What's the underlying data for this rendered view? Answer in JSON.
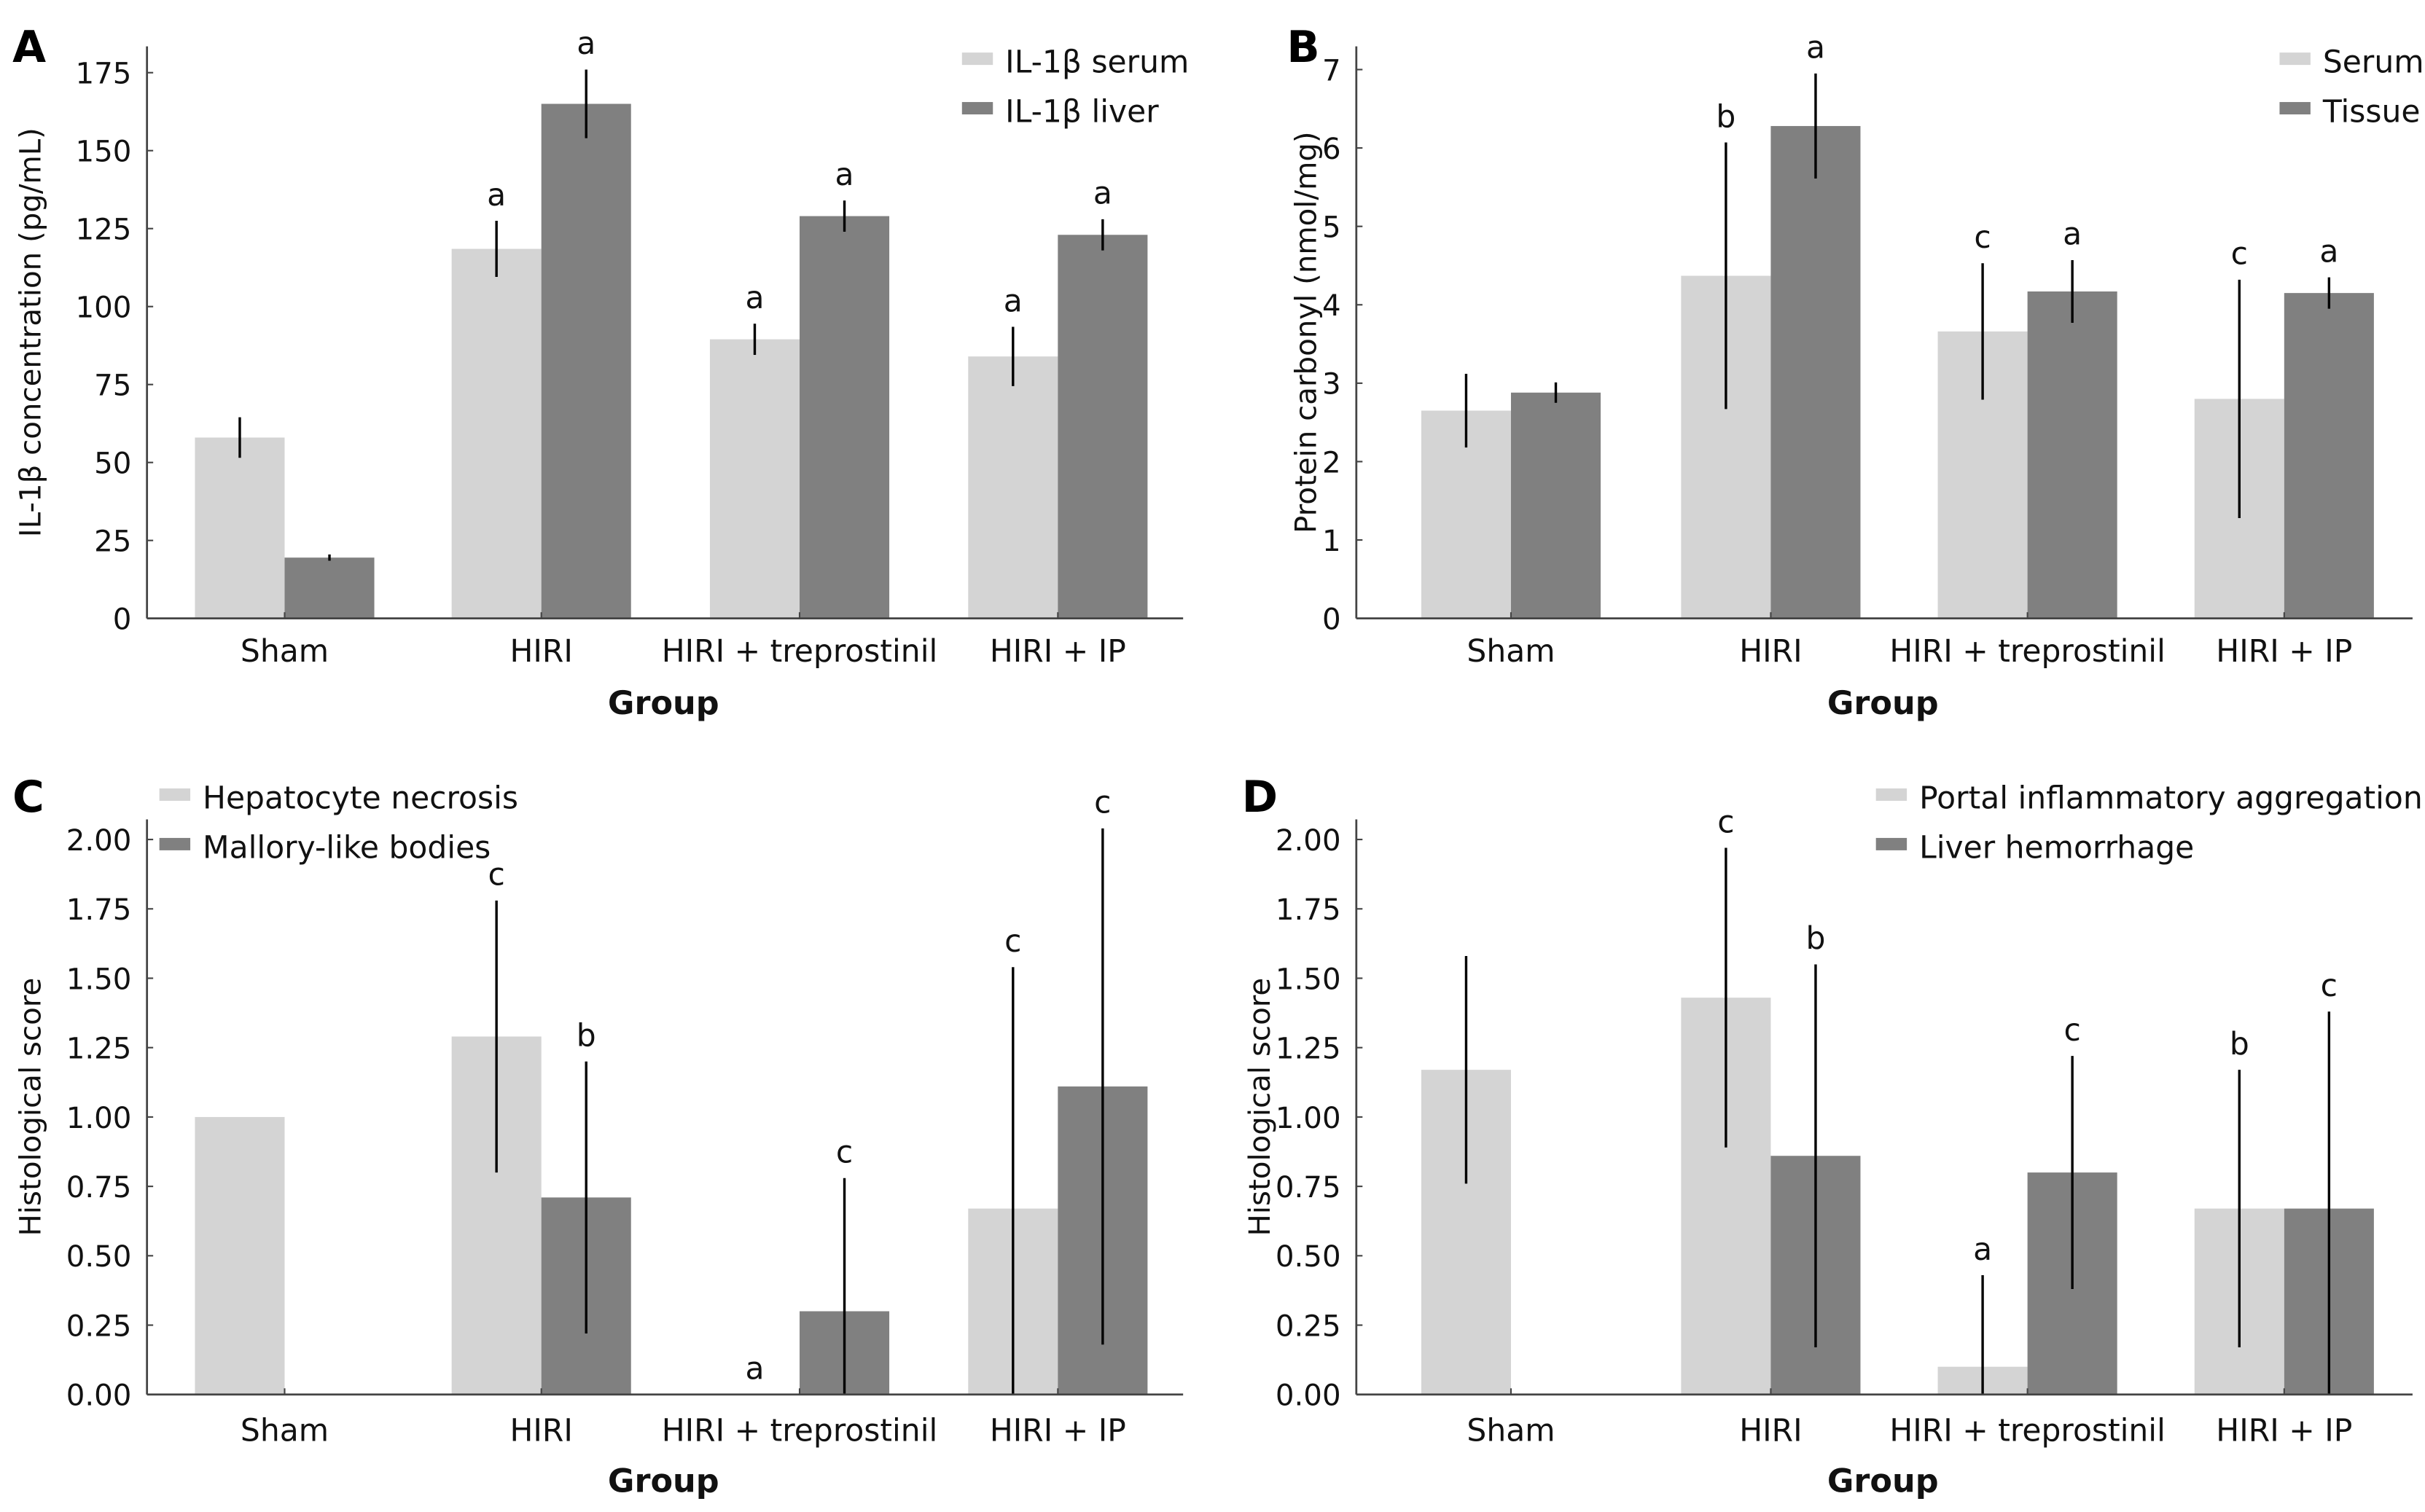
{
  "colors": {
    "series1": "#d4d4d4",
    "series2": "#808080",
    "axis": "#444444",
    "error": "#000000"
  },
  "chart_data": [
    {
      "panel": "A",
      "type": "bar",
      "categories": [
        "Sham",
        "HIRI",
        "HIRI + treprostinil",
        "HIRI + IP"
      ],
      "xlabel": "Group",
      "ylabel": "IL-1β concentration (pg/mL)",
      "ylim": [
        0,
        185
      ],
      "yticks": [
        0,
        25,
        50,
        75,
        100,
        125,
        150,
        175
      ],
      "ytick_decimals": 0,
      "legend_position": "top-right",
      "series": [
        {
          "name": "IL-1β serum",
          "values": [
            58,
            118.5,
            89.5,
            84
          ],
          "errors": [
            6.5,
            9,
            5,
            9.5
          ],
          "labels": [
            "",
            "a",
            "a",
            "a"
          ]
        },
        {
          "name": "IL-1β liver",
          "values": [
            19.5,
            165,
            129,
            123
          ],
          "errors": [
            1,
            11,
            5,
            5
          ],
          "labels": [
            "",
            "a",
            "a",
            "a"
          ]
        }
      ]
    },
    {
      "panel": "B",
      "type": "bar",
      "categories": [
        "Sham",
        "HIRI",
        "HIRI + treprostinil",
        "HIRI + IP"
      ],
      "xlabel": "Group",
      "ylabel": "Protein carbonyl (nmol/mg)",
      "ylim": [
        0,
        7.3
      ],
      "yticks": [
        0,
        1,
        2,
        3,
        4,
        5,
        6,
        7
      ],
      "ytick_decimals": 0,
      "legend_position": "top-right",
      "series": [
        {
          "name": "Serum",
          "values": [
            2.65,
            4.37,
            3.66,
            2.8
          ],
          "errors": [
            0.47,
            1.7,
            0.87,
            1.52
          ],
          "labels": [
            "",
            "b",
            "c",
            "c"
          ]
        },
        {
          "name": "Tissue",
          "values": [
            2.88,
            6.28,
            4.17,
            4.15
          ],
          "errors": [
            0.13,
            0.67,
            0.4,
            0.2
          ],
          "labels": [
            "",
            "a",
            "a",
            "a"
          ]
        }
      ]
    },
    {
      "panel": "C",
      "type": "bar",
      "categories": [
        "Sham",
        "HIRI",
        "HIRI + treprostinil",
        "HIRI + IP"
      ],
      "xlabel": "Group",
      "ylabel": "Histological score",
      "ylim": [
        0,
        2.1
      ],
      "yticks": [
        0,
        0.25,
        0.5,
        0.75,
        1,
        1.25,
        1.5,
        1.75,
        2
      ],
      "ytick_decimals": 2,
      "legend_position": "top-left",
      "series": [
        {
          "name": "Hepatocyte necrosis",
          "values": [
            1.0,
            1.29,
            0,
            0.67
          ],
          "errors": [
            0,
            0.49,
            0,
            0.87
          ],
          "labels": [
            "",
            "c",
            "a",
            "c"
          ]
        },
        {
          "name": "Mallory-like bodies",
          "values": [
            0,
            0.71,
            0.3,
            1.11
          ],
          "errors": [
            0,
            0.49,
            0.48,
            0.93
          ],
          "labels": [
            "",
            "b",
            "c",
            "c"
          ]
        }
      ]
    },
    {
      "panel": "D",
      "type": "bar",
      "categories": [
        "Sham",
        "HIRI",
        "HIRI + treprostinil",
        "HIRI + IP"
      ],
      "xlabel": "Group",
      "ylabel": "Histological score",
      "ylim": [
        0,
        2.1
      ],
      "yticks": [
        0,
        0.25,
        0.5,
        0.75,
        1,
        1.25,
        1.5,
        1.75,
        2
      ],
      "ytick_decimals": 2,
      "legend_position": "top-right",
      "series": [
        {
          "name": "Portal inflammatory aggregation",
          "values": [
            1.17,
            1.43,
            0.1,
            0.67
          ],
          "errors": [
            0.41,
            0.54,
            0.33,
            0.5
          ],
          "labels": [
            "",
            "c",
            "a",
            "b"
          ]
        },
        {
          "name": "Liver hemorrhage",
          "values": [
            0,
            0.86,
            0.8,
            0.67
          ],
          "errors": [
            0,
            0.69,
            0.42,
            0.71
          ],
          "labels": [
            "",
            "b",
            "c",
            "c"
          ]
        }
      ]
    }
  ]
}
